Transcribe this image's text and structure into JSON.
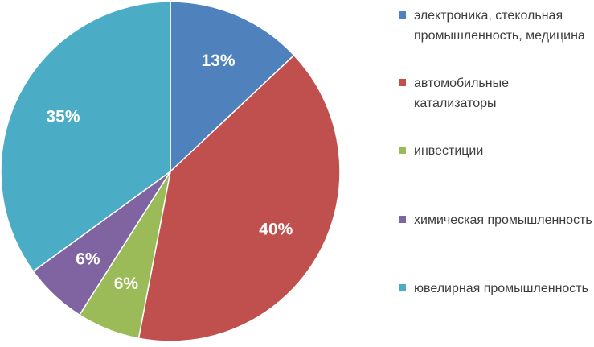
{
  "chart_data": {
    "type": "pie",
    "title": "",
    "start_angle_deg": 0,
    "direction": "clockwise",
    "legend_position": "right",
    "slices": [
      {
        "label": "электроника, стекольная промышленность, медицина",
        "value": 13,
        "display": "13%",
        "color": "#4f81bd"
      },
      {
        "label": "автомобильные катализаторы",
        "value": 40,
        "display": "40%",
        "color": "#c0504d"
      },
      {
        "label": "инвестиции",
        "value": 6,
        "display": "6%",
        "color": "#9bbb59"
      },
      {
        "label": "химическая промышленность",
        "value": 6,
        "display": "6%",
        "color": "#8064a2"
      },
      {
        "label": "ювелирная промышленность",
        "value": 35,
        "display": "35%",
        "color": "#4bacc6"
      }
    ]
  }
}
